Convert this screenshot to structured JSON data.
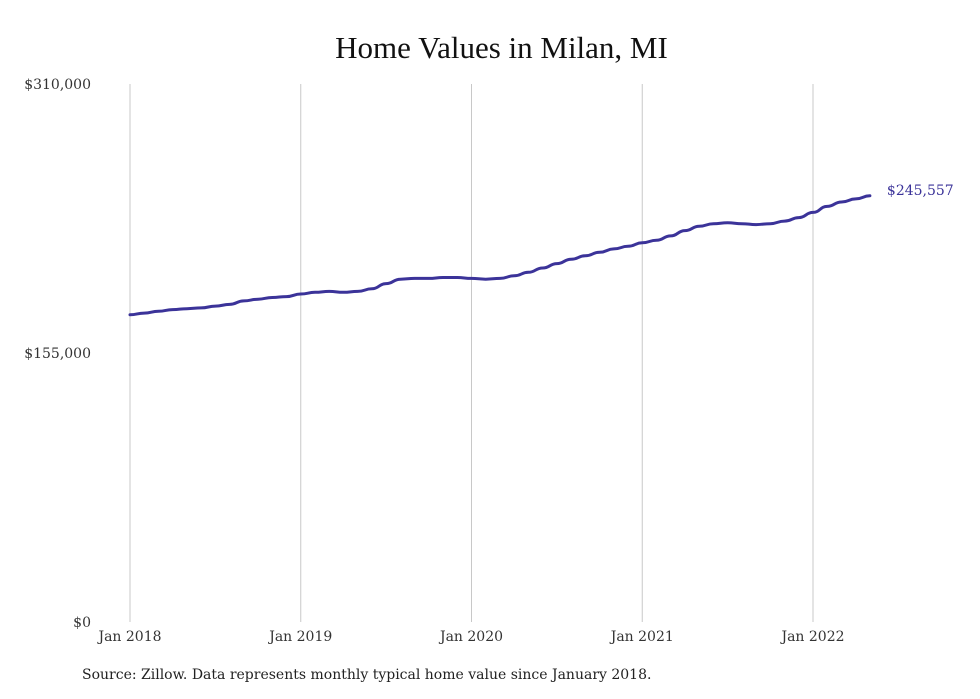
{
  "chart_data": {
    "type": "line",
    "title": "Home Values in Milan, MI",
    "xlabel": "",
    "ylabel": "",
    "x_tick_labels": [
      "Jan 2018",
      "Jan 2019",
      "Jan 2020",
      "Jan 2021",
      "Jan 2022"
    ],
    "y_tick_labels": [
      "$310,000",
      "$155,000",
      "$0"
    ],
    "ylim": [
      0,
      310000
    ],
    "grid": "vertical",
    "end_label": "$245,557",
    "line_color": "#3b3399",
    "series": [
      {
        "x": [
          "2018-01",
          "2018-02",
          "2018-03",
          "2018-04",
          "2018-05",
          "2018-06",
          "2018-07",
          "2018-08",
          "2018-09",
          "2018-10",
          "2018-11",
          "2018-12",
          "2019-01",
          "2019-02",
          "2019-03",
          "2019-04",
          "2019-05",
          "2019-06",
          "2019-07",
          "2019-08",
          "2019-09",
          "2019-10",
          "2019-11",
          "2019-12",
          "2020-01",
          "2020-02",
          "2020-03",
          "2020-04",
          "2020-05",
          "2020-06",
          "2020-07",
          "2020-08",
          "2020-09",
          "2020-10",
          "2020-11",
          "2020-12",
          "2021-01",
          "2021-02",
          "2021-03",
          "2021-04",
          "2021-05",
          "2021-06",
          "2021-07",
          "2021-08",
          "2021-09",
          "2021-10",
          "2021-11",
          "2021-12",
          "2022-01",
          "2022-02",
          "2022-03",
          "2022-04",
          "2022-05"
        ],
        "y": [
          177000,
          178000,
          179000,
          180000,
          180500,
          181000,
          182000,
          183000,
          185000,
          186000,
          187000,
          187500,
          189000,
          190000,
          190500,
          190000,
          190500,
          192000,
          195000,
          197500,
          198000,
          198000,
          198500,
          198500,
          198000,
          197500,
          198000,
          199500,
          201500,
          204000,
          206500,
          209000,
          211000,
          213000,
          215000,
          216500,
          218500,
          220000,
          222500,
          225500,
          228000,
          229500,
          230000,
          229500,
          229000,
          229500,
          231000,
          233000,
          236000,
          239500,
          242000,
          243800,
          245557
        ]
      }
    ]
  },
  "footer": {
    "source": "Source: Zillow. Data represents monthly typical home value since January 2018."
  }
}
